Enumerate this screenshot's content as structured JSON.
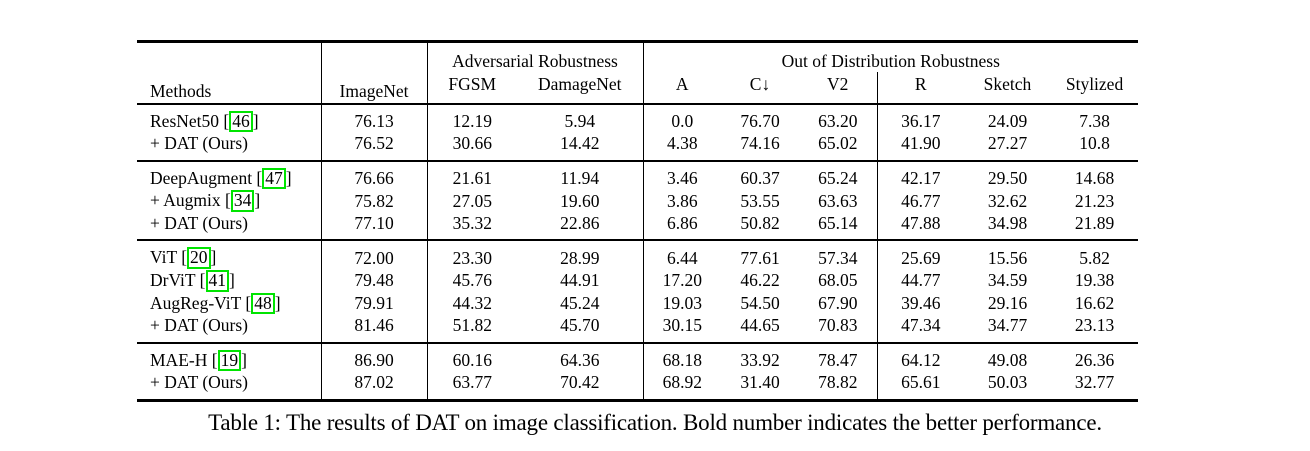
{
  "page": {
    "background": "#ffffff"
  },
  "colors": {
    "citation_box": "#00e400",
    "rule": "#000000",
    "text": "#000000"
  },
  "table": {
    "caption": "Table 1: The results of DAT on image classification. Bold number indicates the better performance.",
    "header": {
      "methods": "Methods",
      "imagenet": "ImageNet",
      "adversarial_group": "Adversarial Robustness",
      "adv_cols": [
        "FGSM",
        "DamageNet"
      ],
      "ood_group": "Out of Distribution Robustness",
      "ood_cols": [
        "A",
        "C↓",
        "V2",
        "R",
        "Sketch",
        "Stylized"
      ]
    },
    "groups": [
      {
        "rows": [
          {
            "method": "ResNet50",
            "cite": "46",
            "method_bold": false,
            "values": [
              "76.13",
              "12.19",
              "5.94",
              "0.0",
              "76.70",
              "63.20",
              "36.17",
              "24.09",
              "7.38"
            ],
            "bold": [
              0,
              0,
              0,
              0,
              0,
              0,
              0,
              0,
              0
            ]
          },
          {
            "method": "+ DAT (Ours)",
            "cite": null,
            "method_bold": true,
            "values": [
              "76.52",
              "30.66",
              "14.42",
              "4.38",
              "74.16",
              "65.02",
              "41.90",
              "27.27",
              "10.8"
            ],
            "bold": [
              1,
              1,
              1,
              1,
              1,
              1,
              1,
              1,
              1
            ]
          }
        ]
      },
      {
        "rows": [
          {
            "method": "DeepAugment",
            "cite": "47",
            "method_bold": false,
            "values": [
              "76.66",
              "21.61",
              "11.94",
              "3.46",
              "60.37",
              "65.24",
              "42.17",
              "29.50",
              "14.68"
            ],
            "bold": [
              0,
              0,
              0,
              0,
              0,
              1,
              0,
              0,
              0
            ]
          },
          {
            "method": "+ Augmix",
            "cite": "34",
            "method_bold": false,
            "values": [
              "75.82",
              "27.05",
              "19.60",
              "3.86",
              "53.55",
              "63.63",
              "46.77",
              "32.62",
              "21.23"
            ],
            "bold": [
              0,
              0,
              0,
              0,
              0,
              0,
              0,
              0,
              0
            ]
          },
          {
            "method": "+ DAT (Ours)",
            "cite": null,
            "method_bold": true,
            "values": [
              "77.10",
              "35.32",
              "22.86",
              "6.86",
              "50.82",
              "65.14",
              "47.88",
              "34.98",
              "21.89"
            ],
            "bold": [
              1,
              1,
              1,
              1,
              1,
              0,
              1,
              1,
              1
            ]
          }
        ]
      },
      {
        "rows": [
          {
            "method": "ViT",
            "cite": "20",
            "method_bold": false,
            "values": [
              "72.00",
              "23.30",
              "28.99",
              "6.44",
              "77.61",
              "57.34",
              "25.69",
              "15.56",
              "5.82"
            ],
            "bold": [
              0,
              0,
              0,
              0,
              0,
              0,
              0,
              0,
              0
            ]
          },
          {
            "method": "DrViT",
            "cite": "41",
            "method_bold": false,
            "values": [
              "79.48",
              "45.76",
              "44.91",
              "17.20",
              "46.22",
              "68.05",
              "44.77",
              "34.59",
              "19.38"
            ],
            "bold": [
              0,
              0,
              0,
              0,
              0,
              0,
              0,
              0,
              0
            ]
          },
          {
            "method": "AugReg-ViT",
            "cite": "48",
            "method_bold": false,
            "values": [
              "79.91",
              "44.32",
              "45.24",
              "19.03",
              "54.50",
              "67.90",
              "39.46",
              "29.16",
              "16.62"
            ],
            "bold": [
              0,
              0,
              0,
              0,
              0,
              0,
              0,
              0,
              0
            ]
          },
          {
            "method": "+ DAT (Ours)",
            "cite": null,
            "method_bold": true,
            "values": [
              "81.46",
              "51.82",
              "45.70",
              "30.15",
              "44.65",
              "70.83",
              "47.34",
              "34.77",
              "23.13"
            ],
            "bold": [
              1,
              1,
              1,
              1,
              1,
              1,
              1,
              1,
              1
            ]
          }
        ]
      },
      {
        "rows": [
          {
            "method": "MAE-H",
            "cite": "19",
            "method_bold": false,
            "values": [
              "86.90",
              "60.16",
              "64.36",
              "68.18",
              "33.92",
              "78.47",
              "64.12",
              "49.08",
              "26.36"
            ],
            "bold": [
              0,
              0,
              0,
              0,
              0,
              0,
              0,
              0,
              0
            ]
          },
          {
            "method": "+ DAT (Ours)",
            "cite": null,
            "method_bold": true,
            "values": [
              "87.02",
              "63.77",
              "70.42",
              "68.92",
              "31.40",
              "78.82",
              "65.61",
              "50.03",
              "32.77"
            ],
            "bold": [
              1,
              1,
              1,
              1,
              1,
              1,
              1,
              1,
              1
            ]
          }
        ]
      }
    ]
  }
}
